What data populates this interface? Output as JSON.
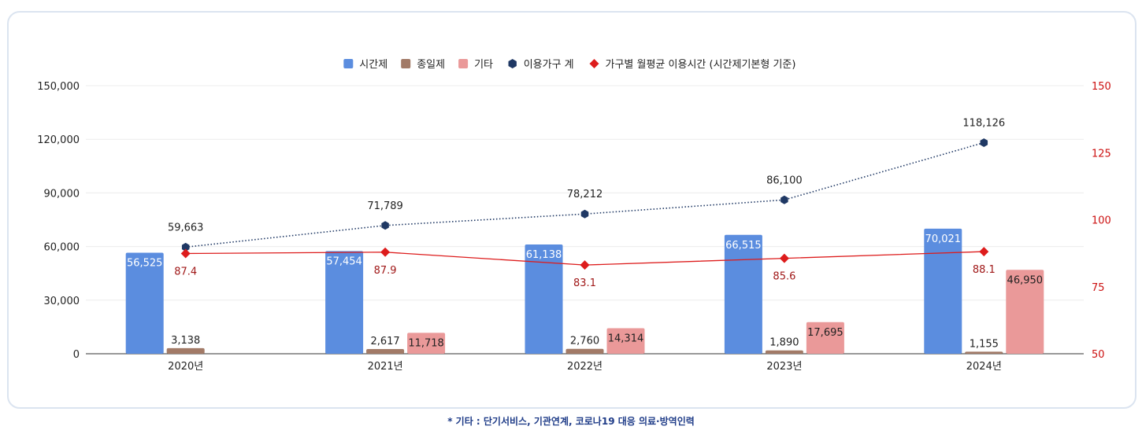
{
  "chart_data": {
    "type": "bar",
    "categories": [
      "2020년",
      "2021년",
      "2022년",
      "2023년",
      "2024년"
    ],
    "series": [
      {
        "name": "시간제",
        "type": "bar",
        "axis": "left",
        "color": "#5b8ddf",
        "values": [
          56525,
          57454,
          61138,
          66515,
          70021
        ],
        "labels": [
          "56,525",
          "57,454",
          "61,138",
          "66,515",
          "70,021"
        ]
      },
      {
        "name": "종일제",
        "type": "bar",
        "axis": "left",
        "color": "#a27a67",
        "values": [
          3138,
          2617,
          2760,
          1890,
          1155
        ],
        "labels": [
          "3,138",
          "2,617",
          "2,760",
          "1,890",
          "1,155"
        ]
      },
      {
        "name": "기타",
        "type": "bar",
        "axis": "left",
        "color": "#ea9999",
        "values": [
          null,
          11718,
          14314,
          17695,
          46950
        ],
        "labels": [
          "",
          "11,718",
          "14,314",
          "17,695",
          "46,950"
        ]
      },
      {
        "name": "이용가구 계",
        "type": "line",
        "axis": "left",
        "color": "#1f3864",
        "values": [
          59663,
          71789,
          78212,
          86100,
          118126
        ],
        "labels": [
          "59,663",
          "71,789",
          "78,212",
          "86,100",
          "118,126"
        ]
      },
      {
        "name": "가구별 월평균 이용시간 (시간제기본형 기준)",
        "type": "line",
        "axis": "right",
        "color": "#dd1c1c",
        "values": [
          87.4,
          87.9,
          83.1,
          85.6,
          88.1
        ],
        "labels": [
          "87.4",
          "87.9",
          "83.1",
          "85.6",
          "88.1"
        ]
      }
    ],
    "y_left": {
      "min": 0,
      "max": 150000,
      "ticks": [
        0,
        30000,
        60000,
        90000,
        120000,
        150000
      ],
      "tick_labels": [
        "0",
        "30,000",
        "60,000",
        "90,000",
        "120,000",
        "150,000"
      ]
    },
    "y_right": {
      "min": 50,
      "max": 150,
      "ticks": [
        50,
        75,
        100,
        125,
        150
      ],
      "tick_labels": [
        "50",
        "75",
        "100",
        "125",
        "150"
      ]
    },
    "legend_position": "top-center",
    "grid": true
  },
  "footnote": "* 기타 : 단기서비스, 기관연계, 코로나19 대응 의료·방역인력"
}
